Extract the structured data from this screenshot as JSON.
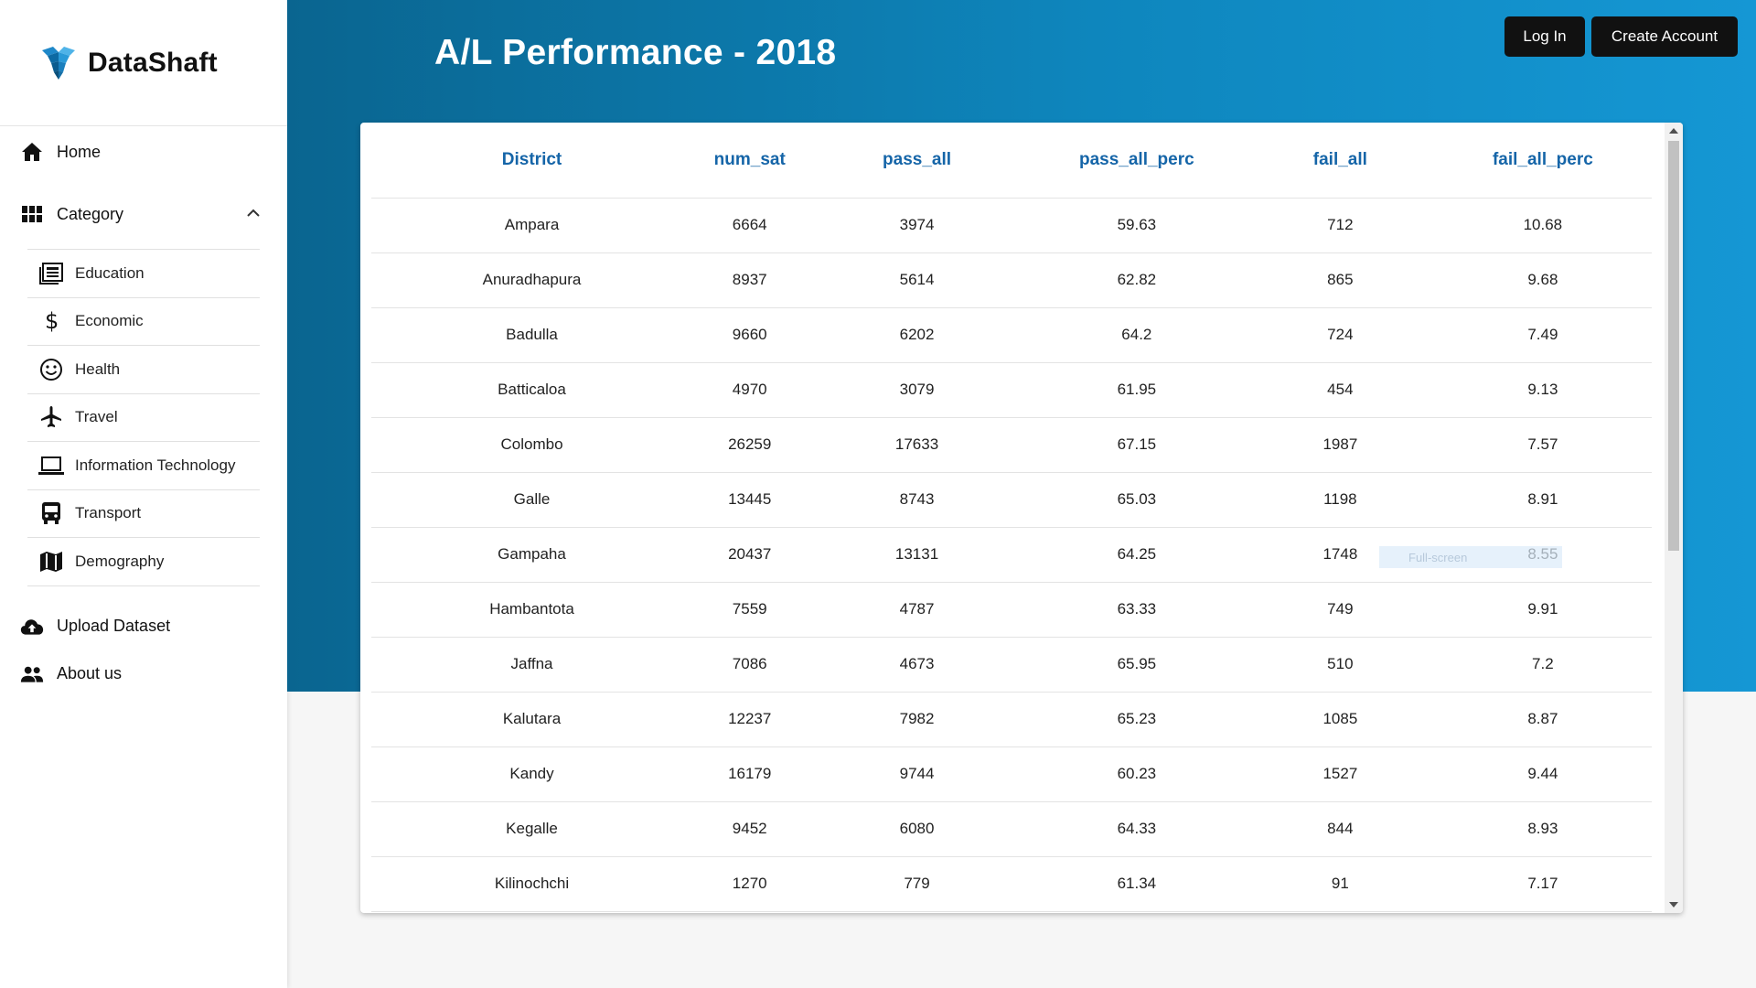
{
  "brand": {
    "name": "DataShaft",
    "logo_icon": "cube-logo-icon"
  },
  "sidebar": {
    "home": {
      "label": "Home",
      "icon": "home-icon"
    },
    "category": {
      "label": "Category",
      "icon": "grid-icon",
      "expanded": true
    },
    "sub_items": [
      {
        "label": "Education",
        "icon": "news-icon"
      },
      {
        "label": "Economic",
        "icon": "dollar-icon"
      },
      {
        "label": "Health",
        "icon": "smile-icon"
      },
      {
        "label": "Travel",
        "icon": "airplane-icon"
      },
      {
        "label": "Information Technology",
        "icon": "laptop-icon"
      },
      {
        "label": "Transport",
        "icon": "bus-icon"
      },
      {
        "label": "Demography",
        "icon": "map-icon"
      }
    ],
    "upload": {
      "label": "Upload Dataset",
      "icon": "cloud-upload-icon"
    },
    "about": {
      "label": "About us",
      "icon": "people-icon"
    }
  },
  "header": {
    "title": "A/L Performance - 2018",
    "login_label": "Log In",
    "create_label": "Create Account"
  },
  "table": {
    "columns": [
      "District",
      "num_sat",
      "pass_all",
      "pass_all_perc",
      "fail_all",
      "fail_all_perc"
    ],
    "rows": [
      [
        "Ampara",
        "6664",
        "3974",
        "59.63",
        "712",
        "10.68"
      ],
      [
        "Anuradhapura",
        "8937",
        "5614",
        "62.82",
        "865",
        "9.68"
      ],
      [
        "Badulla",
        "9660",
        "6202",
        "64.2",
        "724",
        "7.49"
      ],
      [
        "Batticaloa",
        "4970",
        "3079",
        "61.95",
        "454",
        "9.13"
      ],
      [
        "Colombo",
        "26259",
        "17633",
        "67.15",
        "1987",
        "7.57"
      ],
      [
        "Galle",
        "13445",
        "8743",
        "65.03",
        "1198",
        "8.91"
      ],
      [
        "Gampaha",
        "20437",
        "13131",
        "64.25",
        "1748",
        "8.55"
      ],
      [
        "Hambantota",
        "7559",
        "4787",
        "63.33",
        "749",
        "9.91"
      ],
      [
        "Jaffna",
        "7086",
        "4673",
        "65.95",
        "510",
        "7.2"
      ],
      [
        "Kalutara",
        "12237",
        "7982",
        "65.23",
        "1085",
        "8.87"
      ],
      [
        "Kandy",
        "16179",
        "9744",
        "60.23",
        "1527",
        "9.44"
      ],
      [
        "Kegalle",
        "9452",
        "6080",
        "64.33",
        "844",
        "8.93"
      ],
      [
        "Kilinochchi",
        "1270",
        "779",
        "61.34",
        "91",
        "7.17"
      ]
    ]
  },
  "overlay_text": "Full-screen"
}
